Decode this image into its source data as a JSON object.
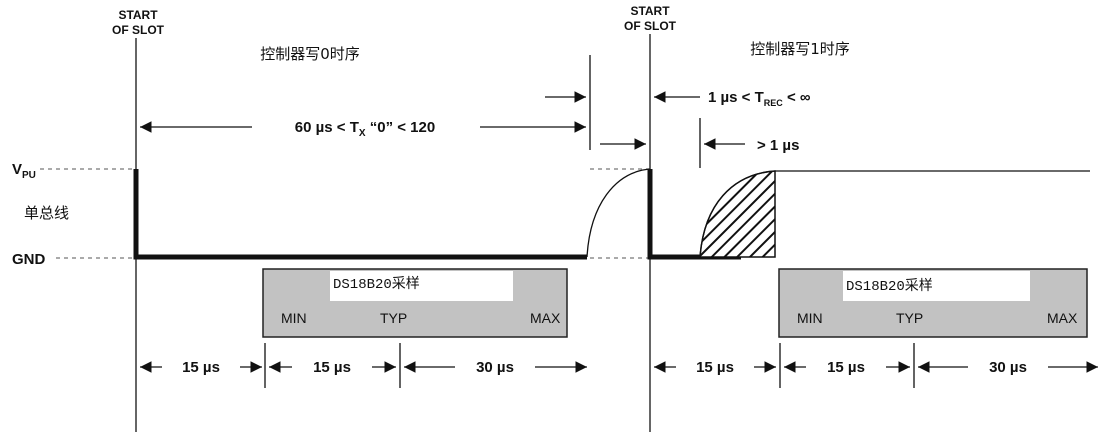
{
  "slot_start_label": [
    "START",
    "OF SLOT"
  ],
  "write0_title": "控制器写0时序",
  "write1_title": "控制器写1时序",
  "levels": {
    "vpu_main": "V",
    "vpu_sub": "PU",
    "bus": "单总线",
    "gnd": "GND"
  },
  "tx0_timing": {
    "prefix": "60 µs < T",
    "sub": "X",
    "suffix": " “0” < 120"
  },
  "trec_timing": {
    "prefix": "1 µs < T",
    "sub": "REC",
    "suffix": " < ∞"
  },
  "gt1_timing": "> 1 µs",
  "sampling_box": {
    "title": "DS18B20采样",
    "min": "MIN",
    "typ": "TYP",
    "max": "MAX",
    "max_slot0": "MAX"
  },
  "durations_slot0": [
    "15 µs",
    "15 µs",
    "30 µs"
  ],
  "durations_slot1": [
    "15 µs",
    "15 µs",
    "30 µs"
  ]
}
